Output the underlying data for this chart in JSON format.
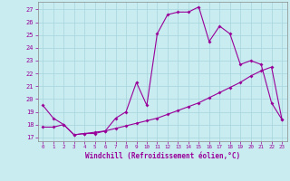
{
  "xlabel": "Windchill (Refroidissement éolien,°C)",
  "background_color": "#c8ecf0",
  "grid_color": "#a8d4dc",
  "line_color": "#990099",
  "spine_color": "#888888",
  "x_ticks": [
    0,
    1,
    2,
    3,
    4,
    5,
    6,
    7,
    8,
    9,
    10,
    11,
    12,
    13,
    14,
    15,
    16,
    17,
    18,
    19,
    20,
    21,
    22,
    23
  ],
  "y_ticks": [
    17,
    18,
    19,
    20,
    21,
    22,
    23,
    24,
    25,
    26,
    27
  ],
  "ylim": [
    16.7,
    27.6
  ],
  "xlim": [
    -0.5,
    23.5
  ],
  "line1_x": [
    0,
    1,
    2,
    3,
    4,
    5,
    6,
    7,
    8,
    9,
    10,
    11,
    12,
    13,
    14,
    15,
    16,
    17,
    18,
    19,
    20,
    21,
    22,
    23
  ],
  "line1_y": [
    19.5,
    18.5,
    18.0,
    17.2,
    17.3,
    17.3,
    17.5,
    18.5,
    19.0,
    21.3,
    19.5,
    25.1,
    26.6,
    26.8,
    26.8,
    27.2,
    24.5,
    25.7,
    25.1,
    22.7,
    23.0,
    22.7,
    19.7,
    18.4
  ],
  "line2_x": [
    0,
    1,
    2,
    3,
    4,
    5,
    6,
    7,
    8,
    9,
    10,
    11,
    12,
    13,
    14,
    15,
    16,
    17,
    18,
    19,
    20,
    21,
    22,
    23
  ],
  "line2_y": [
    17.8,
    17.8,
    18.0,
    17.2,
    17.3,
    17.4,
    17.5,
    17.7,
    17.9,
    18.1,
    18.3,
    18.5,
    18.8,
    19.1,
    19.4,
    19.7,
    20.1,
    20.5,
    20.9,
    21.3,
    21.8,
    22.2,
    22.5,
    18.4
  ]
}
